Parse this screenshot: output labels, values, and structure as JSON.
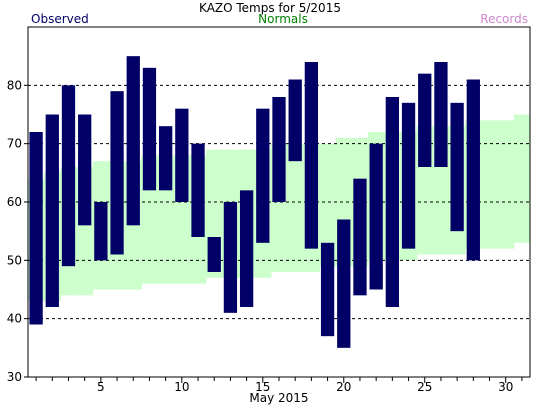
{
  "chart_data": {
    "type": "bar",
    "title": "KAZO Temps for 5/2015",
    "xlabel": "May 2015",
    "ylabel": "",
    "ylim": [
      30,
      90
    ],
    "xlim": [
      0.5,
      31.5
    ],
    "yticks": [
      30,
      40,
      50,
      60,
      70,
      80
    ],
    "xticks": [
      5,
      10,
      15,
      20,
      25,
      30
    ],
    "grid": "horizontal dashed at 40, 50, 60, 70, 80",
    "legend": [
      {
        "label": "Observed",
        "color": "#000066"
      },
      {
        "label": "Normals",
        "color": "#008000"
      },
      {
        "label": "Records",
        "color": "#cc88cc"
      }
    ],
    "colors": {
      "observed": "#000066",
      "normals_band": "#ccffcc",
      "records": "#cc88cc"
    },
    "normals": {
      "days": [
        1,
        2,
        3,
        4,
        5,
        6,
        7,
        8,
        9,
        10,
        11,
        12,
        13,
        14,
        15,
        16,
        17,
        18,
        19,
        20,
        21,
        22,
        23,
        24,
        25,
        26,
        27,
        28,
        29,
        30,
        31
      ],
      "high": [
        64,
        65,
        66,
        66,
        67,
        67,
        67,
        68,
        68,
        68,
        68,
        69,
        69,
        69,
        69,
        70,
        70,
        70,
        70,
        71,
        71,
        72,
        72,
        72,
        73,
        73,
        73,
        74,
        74,
        74,
        75
      ],
      "low": [
        43,
        43,
        44,
        44,
        45,
        45,
        45,
        46,
        46,
        46,
        46,
        47,
        47,
        47,
        47,
        48,
        48,
        48,
        49,
        49,
        49,
        50,
        50,
        50,
        51,
        51,
        51,
        52,
        52,
        52,
        53
      ]
    },
    "series": [
      {
        "name": "Observed",
        "days": [
          1,
          2,
          3,
          4,
          5,
          6,
          7,
          8,
          9,
          10,
          11,
          12,
          13,
          14,
          15,
          16,
          17,
          18,
          19,
          20,
          21,
          22,
          23,
          24,
          25,
          26,
          27,
          28
        ],
        "high": [
          72,
          75,
          80,
          75,
          60,
          79,
          85,
          83,
          73,
          76,
          70,
          54,
          60,
          62,
          76,
          78,
          81,
          84,
          53,
          57,
          64,
          70,
          78,
          77,
          82,
          84,
          77,
          81
        ],
        "low": [
          39,
          42,
          49,
          56,
          50,
          51,
          56,
          62,
          62,
          60,
          54,
          48,
          41,
          42,
          53,
          60,
          67,
          52,
          37,
          35,
          44,
          45,
          42,
          52,
          66,
          66,
          55,
          50
        ]
      }
    ]
  }
}
